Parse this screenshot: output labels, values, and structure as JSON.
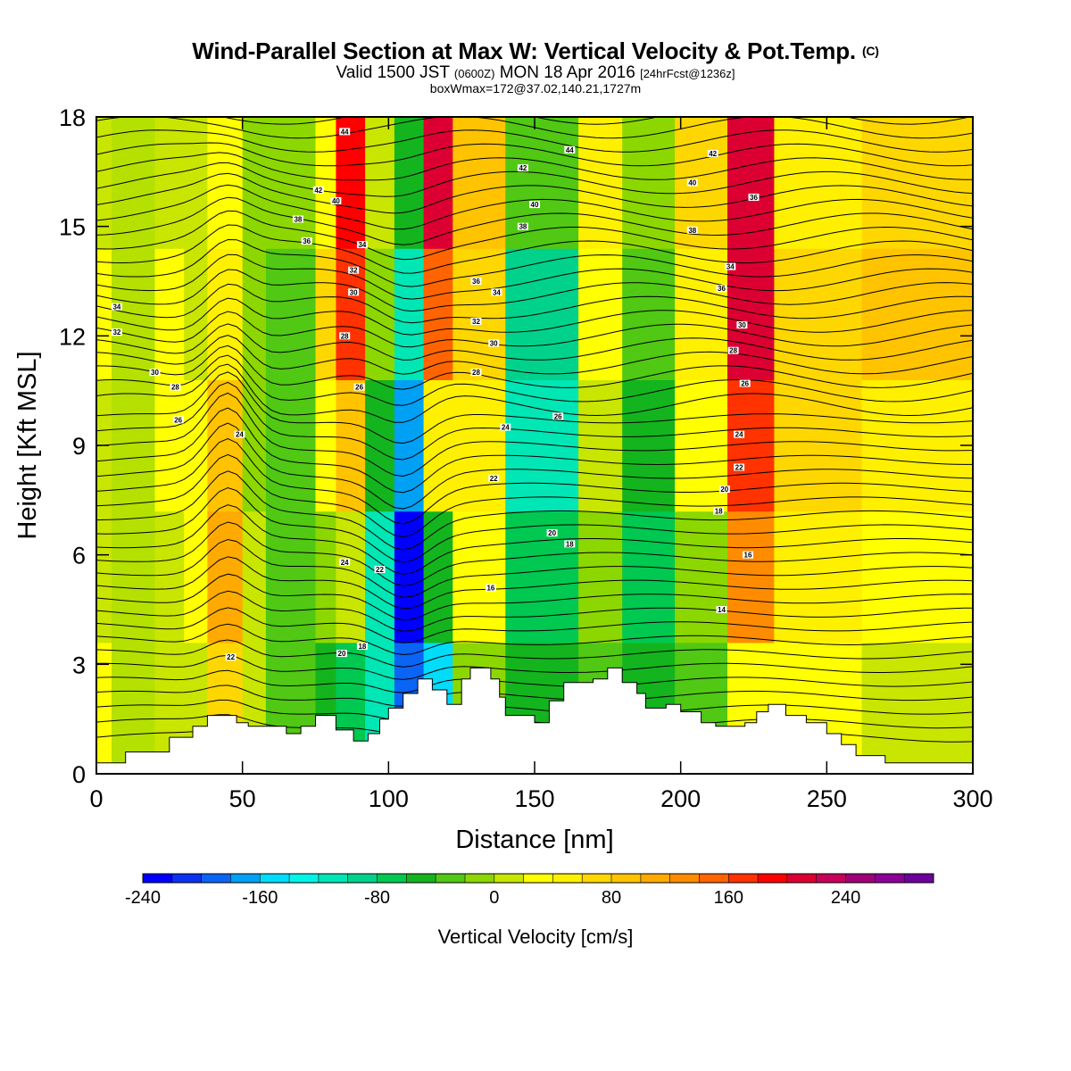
{
  "header": {
    "title": "Wind-Parallel Section at Max W: Vertical Velocity & Pot.Temp.",
    "copyright": "(C)",
    "valid_prefix": "Valid 1500 JST",
    "valid_utc": "(0600Z)",
    "valid_date": "MON 18 Apr 2016",
    "forecast": "[24hrFcst@1236z]",
    "boxinfo": "boxWmax=172@37.02,140.21,1727m"
  },
  "chart_data": {
    "type": "heatmap",
    "title": "Wind-Parallel Section at Max W: Vertical Velocity & Pot.Temp.",
    "xlabel": "Distance [nm]",
    "ylabel": "Height [Kft MSL]",
    "xlim": [
      0,
      300
    ],
    "ylim": [
      0,
      18
    ],
    "x_ticks": [
      "0",
      "50",
      "100",
      "150",
      "200",
      "250",
      "300"
    ],
    "y_ticks": [
      "0",
      "3",
      "6",
      "9",
      "12",
      "15",
      "18"
    ],
    "colorbar": {
      "title": "Vertical Velocity [cm/s]",
      "min": -240,
      "max": 300,
      "step": 20,
      "tick_labels": [
        "-240",
        "-160",
        "-80",
        "0",
        "80",
        "160",
        "240"
      ],
      "colors": [
        "#0000ff",
        "#0a32f0",
        "#0a64f5",
        "#00a0f5",
        "#00dcfa",
        "#00f5e6",
        "#00e6b4",
        "#00d28c",
        "#00c850",
        "#14b41e",
        "#50c814",
        "#8cd700",
        "#c8e600",
        "#ffff00",
        "#fff000",
        "#ffd700",
        "#ffc300",
        "#ffaa00",
        "#ff8c00",
        "#ff6400",
        "#ff3200",
        "#ff0000",
        "#dc0032",
        "#c8005a",
        "#a00078",
        "#8c0096",
        "#6e009b"
      ]
    },
    "velocity_cells": [
      {
        "x": [
          0,
          5
        ],
        "w": [
          20,
          15,
          10,
          20,
          10
        ]
      },
      {
        "x": [
          20,
          30
        ],
        "w": [
          10,
          15,
          30,
          25,
          15
        ]
      },
      {
        "x": [
          30,
          38
        ],
        "w": [
          15,
          30,
          20,
          10,
          5
        ]
      },
      {
        "x": [
          38,
          50
        ],
        "w": [
          60,
          110,
          90,
          40,
          20
        ]
      },
      {
        "x": [
          50,
          58
        ],
        "w": [
          10,
          10,
          -10,
          -20,
          -10
        ]
      },
      {
        "x": [
          58,
          75
        ],
        "w": [
          -40,
          -40,
          -30,
          -40,
          -20
        ]
      },
      {
        "x": [
          75,
          82
        ],
        "w": [
          -60,
          -20,
          20,
          60,
          30
        ]
      },
      {
        "x": [
          82,
          92
        ],
        "w": [
          -80,
          0,
          90,
          170,
          180
        ]
      },
      {
        "x": [
          92,
          102
        ],
        "w": [
          -120,
          -110,
          -60,
          -20,
          10
        ]
      },
      {
        "x": [
          102,
          112
        ],
        "w": [
          -200,
          -230,
          -180,
          -110,
          -60
        ]
      },
      {
        "x": [
          112,
          122
        ],
        "w": [
          -160,
          -60,
          40,
          140,
          200
        ]
      },
      {
        "x": [
          122,
          140
        ],
        "w": [
          -20,
          20,
          40,
          60,
          80
        ]
      },
      {
        "x": [
          140,
          165
        ],
        "w": [
          -60,
          -80,
          -110,
          -90,
          -30
        ]
      },
      {
        "x": [
          165,
          180
        ],
        "w": [
          -40,
          -20,
          0,
          20,
          40
        ]
      },
      {
        "x": [
          180,
          198
        ],
        "w": [
          -60,
          -80,
          -60,
          -40,
          -20
        ]
      },
      {
        "x": [
          198,
          216
        ],
        "w": [
          -40,
          -10,
          20,
          40,
          60
        ]
      },
      {
        "x": [
          216,
          232
        ],
        "w": [
          20,
          120,
          160,
          200,
          210
        ]
      },
      {
        "x": [
          232,
          262
        ],
        "w": [
          20,
          40,
          70,
          60,
          40
        ]
      },
      {
        "x": [
          262,
          300
        ],
        "w": [
          10,
          30,
          50,
          80,
          70
        ]
      }
    ],
    "terrain_kft": [
      [
        0,
        0.3
      ],
      [
        10,
        0.6
      ],
      [
        25,
        1.0
      ],
      [
        33,
        1.3
      ],
      [
        38,
        1.6
      ],
      [
        48,
        1.4
      ],
      [
        52,
        1.3
      ],
      [
        65,
        1.1
      ],
      [
        70,
        1.3
      ],
      [
        75,
        1.6
      ],
      [
        82,
        1.2
      ],
      [
        88,
        0.9
      ],
      [
        93,
        1.1
      ],
      [
        97,
        1.5
      ],
      [
        100,
        1.8
      ],
      [
        105,
        2.2
      ],
      [
        110,
        2.6
      ],
      [
        115,
        2.3
      ],
      [
        120,
        1.9
      ],
      [
        125,
        2.6
      ],
      [
        128,
        2.9
      ],
      [
        135,
        2.6
      ],
      [
        138,
        2.1
      ],
      [
        140,
        1.6
      ],
      [
        150,
        1.4
      ],
      [
        155,
        2.0
      ],
      [
        160,
        2.5
      ],
      [
        170,
        2.6
      ],
      [
        175,
        2.9
      ],
      [
        180,
        2.5
      ],
      [
        185,
        2.2
      ],
      [
        188,
        1.8
      ],
      [
        195,
        1.9
      ],
      [
        200,
        1.7
      ],
      [
        207,
        1.4
      ],
      [
        212,
        1.3
      ],
      [
        222,
        1.4
      ],
      [
        226,
        1.7
      ],
      [
        230,
        1.9
      ],
      [
        236,
        1.6
      ],
      [
        243,
        1.4
      ],
      [
        250,
        1.1
      ],
      [
        255,
        0.8
      ],
      [
        260,
        0.5
      ],
      [
        270,
        0.3
      ],
      [
        300,
        0.3
      ]
    ],
    "theta_contour_labels": [
      {
        "x": 7,
        "y": 12.8,
        "text": "34"
      },
      {
        "x": 7,
        "y": 12.1,
        "text": "32"
      },
      {
        "x": 20,
        "y": 11.0,
        "text": "30"
      },
      {
        "x": 27,
        "y": 10.6,
        "text": "28"
      },
      {
        "x": 28,
        "y": 9.7,
        "text": "26"
      },
      {
        "x": 49,
        "y": 9.3,
        "text": "24"
      },
      {
        "x": 46,
        "y": 3.2,
        "text": "22"
      },
      {
        "x": 76,
        "y": 16.0,
        "text": "42"
      },
      {
        "x": 69,
        "y": 15.2,
        "text": "38"
      },
      {
        "x": 72,
        "y": 14.6,
        "text": "36"
      },
      {
        "x": 82,
        "y": 15.7,
        "text": "40"
      },
      {
        "x": 85,
        "y": 17.6,
        "text": "44"
      },
      {
        "x": 91,
        "y": 14.5,
        "text": "34"
      },
      {
        "x": 88,
        "y": 13.8,
        "text": "32"
      },
      {
        "x": 88,
        "y": 13.2,
        "text": "30"
      },
      {
        "x": 85,
        "y": 12.0,
        "text": "28"
      },
      {
        "x": 90,
        "y": 10.6,
        "text": "26"
      },
      {
        "x": 85,
        "y": 5.8,
        "text": "24"
      },
      {
        "x": 97,
        "y": 5.6,
        "text": "22"
      },
      {
        "x": 84,
        "y": 3.3,
        "text": "20"
      },
      {
        "x": 91,
        "y": 3.5,
        "text": "18"
      },
      {
        "x": 130,
        "y": 13.5,
        "text": "36"
      },
      {
        "x": 137,
        "y": 13.2,
        "text": "34"
      },
      {
        "x": 130,
        "y": 12.4,
        "text": "32"
      },
      {
        "x": 136,
        "y": 11.8,
        "text": "30"
      },
      {
        "x": 130,
        "y": 11.0,
        "text": "28"
      },
      {
        "x": 140,
        "y": 9.5,
        "text": "24"
      },
      {
        "x": 158,
        "y": 9.8,
        "text": "26"
      },
      {
        "x": 136,
        "y": 8.1,
        "text": "22"
      },
      {
        "x": 156,
        "y": 6.6,
        "text": "20"
      },
      {
        "x": 162,
        "y": 6.3,
        "text": "18"
      },
      {
        "x": 135,
        "y": 5.1,
        "text": "16"
      },
      {
        "x": 146,
        "y": 16.6,
        "text": "42"
      },
      {
        "x": 150,
        "y": 15.6,
        "text": "40"
      },
      {
        "x": 146,
        "y": 15.0,
        "text": "38"
      },
      {
        "x": 162,
        "y": 17.1,
        "text": "44"
      },
      {
        "x": 211,
        "y": 17.0,
        "text": "42"
      },
      {
        "x": 204,
        "y": 16.2,
        "text": "40"
      },
      {
        "x": 204,
        "y": 14.9,
        "text": "38"
      },
      {
        "x": 225,
        "y": 15.8,
        "text": "36"
      },
      {
        "x": 217,
        "y": 13.9,
        "text": "34"
      },
      {
        "x": 214,
        "y": 13.3,
        "text": "36"
      },
      {
        "x": 221,
        "y": 12.3,
        "text": "30"
      },
      {
        "x": 218,
        "y": 11.6,
        "text": "28"
      },
      {
        "x": 222,
        "y": 10.7,
        "text": "26"
      },
      {
        "x": 220,
        "y": 9.3,
        "text": "24"
      },
      {
        "x": 220,
        "y": 8.4,
        "text": "22"
      },
      {
        "x": 215,
        "y": 7.8,
        "text": "20"
      },
      {
        "x": 213,
        "y": 7.2,
        "text": "18"
      },
      {
        "x": 223,
        "y": 6.0,
        "text": "16"
      },
      {
        "x": 214,
        "y": 4.5,
        "text": "14"
      }
    ]
  }
}
